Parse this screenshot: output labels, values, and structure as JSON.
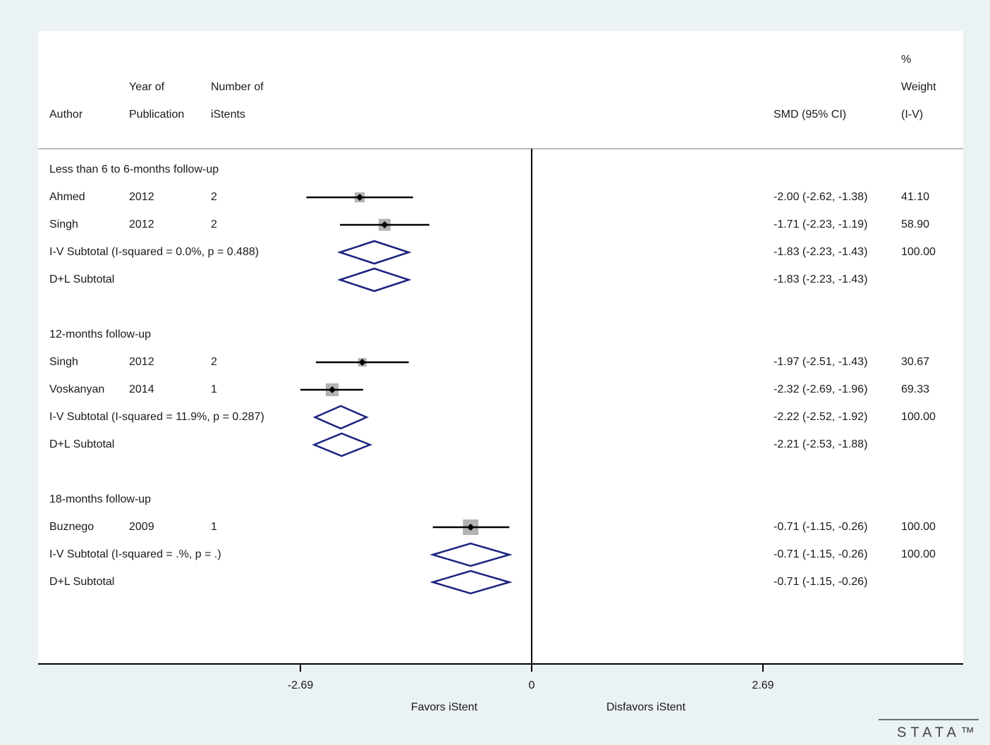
{
  "chart_data": {
    "type": "forest",
    "columns": {
      "author": "Author",
      "year": [
        "Year of",
        "Publication"
      ],
      "n_istents": [
        "Number of",
        "iStents"
      ],
      "effect": "SMD (95% CI)",
      "weight": [
        "%",
        "Weight",
        "(I-V)"
      ]
    },
    "xaxis": {
      "ticks": [
        -2.69,
        0,
        2.69
      ],
      "tick_labels": [
        "-2.69",
        "0",
        "2.69"
      ],
      "range": [
        -5.38,
        5.38
      ],
      "left_label": "Favors iStent",
      "right_label": "Disfavors iStent",
      "null_line": 0
    },
    "groups": [
      {
        "label": "Less than 6 to 6-months follow-up",
        "studies": [
          {
            "author": "Ahmed",
            "year": "2012",
            "n": "2",
            "smd": -2.0,
            "lo": -2.62,
            "hi": -1.38,
            "ci_text": "-2.00 (-2.62, -1.38)",
            "weight": "41.10"
          },
          {
            "author": "Singh",
            "year": "2012",
            "n": "2",
            "smd": -1.71,
            "lo": -2.23,
            "hi": -1.19,
            "ci_text": "-1.71 (-2.23, -1.19)",
            "weight": "58.90"
          }
        ],
        "subtotals": [
          {
            "label": "I-V Subtotal  (I-squared = 0.0%, p = 0.488)",
            "smd": -1.83,
            "lo": -2.23,
            "hi": -1.43,
            "ci_text": "-1.83 (-2.23, -1.43)",
            "weight": "100.00"
          },
          {
            "label": "D+L Subtotal",
            "smd": -1.83,
            "lo": -2.23,
            "hi": -1.43,
            "ci_text": "-1.83 (-2.23, -1.43)",
            "weight": ""
          }
        ]
      },
      {
        "label": "12-months follow-up",
        "studies": [
          {
            "author": "Singh",
            "year": "2012",
            "n": "2",
            "smd": -1.97,
            "lo": -2.51,
            "hi": -1.43,
            "ci_text": "-1.97 (-2.51, -1.43)",
            "weight": "30.67"
          },
          {
            "author": "Voskanyan",
            "year": "2014",
            "n": "1",
            "smd": -2.32,
            "lo": -2.69,
            "hi": -1.96,
            "ci_text": "-2.32 (-2.69, -1.96)",
            "weight": "69.33"
          }
        ],
        "subtotals": [
          {
            "label": "I-V Subtotal  (I-squared = 11.9%, p = 0.287)",
            "smd": -2.22,
            "lo": -2.52,
            "hi": -1.92,
            "ci_text": "-2.22 (-2.52, -1.92)",
            "weight": "100.00"
          },
          {
            "label": "D+L Subtotal",
            "smd": -2.21,
            "lo": -2.53,
            "hi": -1.88,
            "ci_text": "-2.21 (-2.53, -1.88)",
            "weight": ""
          }
        ]
      },
      {
        "label": "18-months follow-up",
        "studies": [
          {
            "author": "Buznego",
            "year": "2009",
            "n": "1",
            "smd": -0.71,
            "lo": -1.15,
            "hi": -0.26,
            "ci_text": "-0.71 (-1.15, -0.26)",
            "weight": "100.00"
          }
        ],
        "subtotals": [
          {
            "label": "I-V Subtotal  (I-squared = .%, p = .)",
            "smd": -0.71,
            "lo": -1.15,
            "hi": -0.26,
            "ci_text": "-0.71 (-1.15, -0.26)",
            "weight": "100.00"
          },
          {
            "label": "D+L Subtotal",
            "smd": -0.71,
            "lo": -1.15,
            "hi": -0.26,
            "ci_text": "-0.71 (-1.15, -0.26)",
            "weight": ""
          }
        ]
      }
    ]
  },
  "colors": {
    "outer_bg": "#eaf2f3",
    "panel_bg": "#ffffff",
    "diamond": "#1a237e",
    "weight_box": "#b3b3b3",
    "ci_line": "#000000"
  },
  "watermark": "STATA™"
}
